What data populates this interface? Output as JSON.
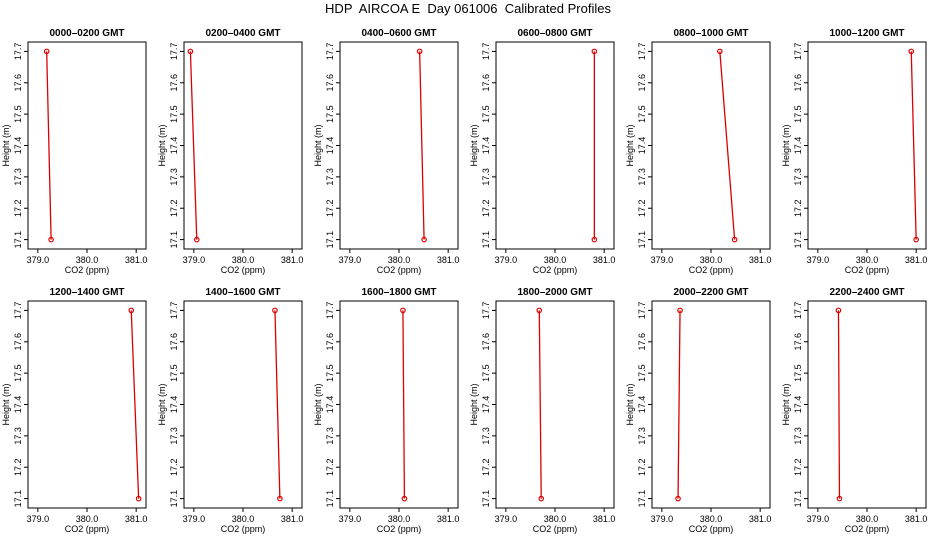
{
  "title": "HDP  AIRCOA E  Day 061006  Calibrated Profiles",
  "chart_data": {
    "type": "line",
    "xlabel": "CO2 (ppm)",
    "ylabel": "Height (m)",
    "xlim": [
      378.8,
      381.2
    ],
    "ylim": [
      17.07,
      17.73
    ],
    "x_ticks": [
      "379.0",
      "380.0",
      "381.0"
    ],
    "y_ticks": [
      "17.1",
      "17.2",
      "17.3",
      "17.4",
      "17.5",
      "17.6",
      "17.7"
    ],
    "series_color": "#dd0000",
    "panels": [
      {
        "title": "0000–0200 GMT",
        "points": [
          {
            "x": 379.18,
            "y": 17.7
          },
          {
            "x": 379.27,
            "y": 17.1
          }
        ]
      },
      {
        "title": "0200–0400 GMT",
        "points": [
          {
            "x": 378.93,
            "y": 17.7
          },
          {
            "x": 379.06,
            "y": 17.1
          }
        ]
      },
      {
        "title": "0400–0600 GMT",
        "points": [
          {
            "x": 380.42,
            "y": 17.7
          },
          {
            "x": 380.51,
            "y": 17.1
          }
        ]
      },
      {
        "title": "0600–0800 GMT",
        "points": [
          {
            "x": 380.8,
            "y": 17.7
          },
          {
            "x": 380.8,
            "y": 17.1
          }
        ]
      },
      {
        "title": "0800–1000 GMT",
        "points": [
          {
            "x": 380.18,
            "y": 17.7
          },
          {
            "x": 380.48,
            "y": 17.1
          }
        ]
      },
      {
        "title": "1000–1200 GMT",
        "points": [
          {
            "x": 380.9,
            "y": 17.7
          },
          {
            "x": 381.0,
            "y": 17.1
          }
        ]
      },
      {
        "title": "1200–1400 GMT",
        "points": [
          {
            "x": 380.9,
            "y": 17.7
          },
          {
            "x": 381.05,
            "y": 17.1
          }
        ]
      },
      {
        "title": "1400–1600 GMT",
        "points": [
          {
            "x": 380.65,
            "y": 17.7
          },
          {
            "x": 380.75,
            "y": 17.1
          }
        ]
      },
      {
        "title": "1600–1800 GMT",
        "points": [
          {
            "x": 380.08,
            "y": 17.7
          },
          {
            "x": 380.11,
            "y": 17.1
          }
        ]
      },
      {
        "title": "1800–2000 GMT",
        "points": [
          {
            "x": 379.68,
            "y": 17.7
          },
          {
            "x": 379.72,
            "y": 17.1
          }
        ]
      },
      {
        "title": "2000–2200 GMT",
        "points": [
          {
            "x": 379.37,
            "y": 17.7
          },
          {
            "x": 379.33,
            "y": 17.1
          }
        ]
      },
      {
        "title": "2200–2400 GMT",
        "points": [
          {
            "x": 379.42,
            "y": 17.7
          },
          {
            "x": 379.44,
            "y": 17.1
          }
        ]
      }
    ]
  }
}
